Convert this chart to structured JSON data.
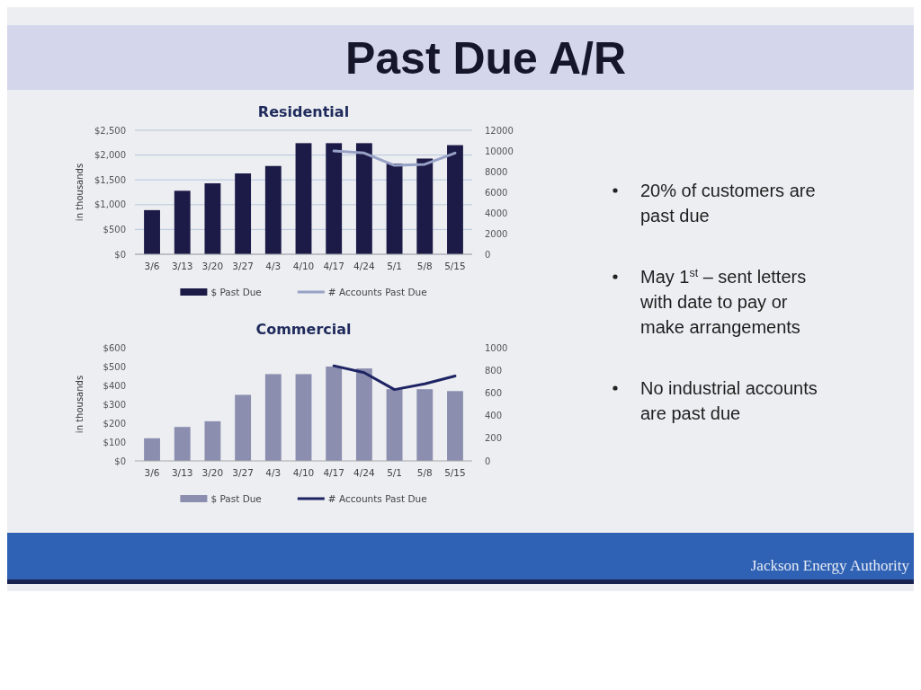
{
  "chart_data": [
    {
      "type": "bar",
      "title": "Residential",
      "ylabel": "in thousands",
      "categories": [
        "3/6",
        "3/13",
        "3/20",
        "3/27",
        "4/3",
        "4/10",
        "4/17",
        "4/24",
        "5/1",
        "5/8",
        "5/15"
      ],
      "series": [
        {
          "name": "$ Past Due",
          "type": "bar",
          "color": "#1c1a47",
          "values": [
            890,
            1280,
            1430,
            1630,
            1780,
            2240,
            2240,
            2240,
            1830,
            1930,
            2200
          ]
        },
        {
          "name": "# Accounts Past Due",
          "type": "line",
          "axis": "y2",
          "color": "#97a2c6",
          "values": [
            null,
            null,
            null,
            null,
            null,
            null,
            10000,
            9800,
            8600,
            8700,
            9800
          ]
        }
      ],
      "ylim": [
        0,
        2500
      ],
      "yticks": [
        {
          "value": 0,
          "label": "$0"
        },
        {
          "value": 500,
          "label": "$500"
        },
        {
          "value": 1000,
          "label": "$1,000"
        },
        {
          "value": 1500,
          "label": "$1,500"
        },
        {
          "value": 2000,
          "label": "$2,000"
        },
        {
          "value": 2500,
          "label": "$2,500"
        }
      ],
      "y2lim": [
        0,
        12000
      ],
      "y2ticks": [
        0,
        2000,
        4000,
        6000,
        8000,
        10000,
        12000
      ],
      "grid": "y",
      "legend": "bottom"
    },
    {
      "type": "bar",
      "title": "Commercial",
      "ylabel": "in thousands",
      "categories": [
        "3/6",
        "3/13",
        "3/20",
        "3/27",
        "4/3",
        "4/10",
        "4/17",
        "4/24",
        "5/1",
        "5/8",
        "5/15"
      ],
      "series": [
        {
          "name": "$ Past Due",
          "type": "bar",
          "color": "#8b8eae",
          "values": [
            120,
            180,
            210,
            350,
            460,
            460,
            500,
            490,
            380,
            380,
            370
          ]
        },
        {
          "name": "# Accounts Past Due",
          "type": "line",
          "axis": "y2",
          "color": "#1e2363",
          "values": [
            null,
            null,
            null,
            null,
            null,
            null,
            840,
            780,
            630,
            680,
            750
          ]
        }
      ],
      "ylim": [
        0,
        600
      ],
      "yticks": [
        {
          "value": 0,
          "label": "$0"
        },
        {
          "value": 100,
          "label": "$100"
        },
        {
          "value": 200,
          "label": "$200"
        },
        {
          "value": 300,
          "label": "$300"
        },
        {
          "value": 400,
          "label": "$400"
        },
        {
          "value": 500,
          "label": "$500"
        },
        {
          "value": 600,
          "label": "$600"
        }
      ],
      "y2lim": [
        0,
        1000
      ],
      "y2ticks": [
        0,
        200,
        400,
        600,
        800,
        1000
      ],
      "legend": "bottom"
    },
    {
      "type": "other",
      "title": "Past Due A/R",
      "annotations": [
        "20% of customers are past due",
        "May 1$^{st}$ – sent letters with date to pay or make arrangements",
        "No industrial accounts are past due",
        "Jackson Energy Authority"
      ]
    }
  ]
}
